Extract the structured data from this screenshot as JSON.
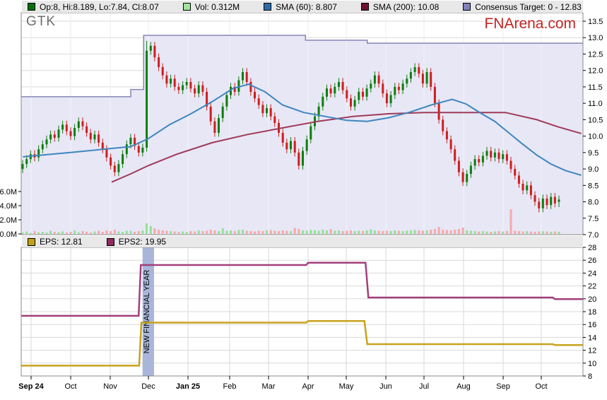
{
  "page": {
    "symbol": "GTK",
    "watermark": "FNArena.com"
  },
  "top_legend": {
    "items": [
      {
        "label": "Op:8, Hi:8.189, Lo:7.84, Cl:8.07",
        "color": "#0b6e0b"
      },
      {
        "label": "Vol: 0.312M",
        "color": "#9fe59f"
      },
      {
        "label": "SMA (60): 8.807",
        "color": "#2f6cab"
      },
      {
        "label": "SMA (200): 10.08",
        "color": "#701030"
      },
      {
        "label": "Consensus Target: 0 - 12.83",
        "color": "#8080bf"
      }
    ]
  },
  "bottom_legend": {
    "items": [
      {
        "label": "EPS: 12.81",
        "color": "#c0a316"
      },
      {
        "label": "EPS2: 19.95",
        "color": "#8f2a63"
      }
    ]
  },
  "colors": {
    "candle_up": "#0e7d0e",
    "candle_down": "#cc1f1f",
    "vol_up": "#96e096",
    "vol_down": "#f5a9a9",
    "sma60": "#3f86bd",
    "sma200": "#a03a57",
    "consensus_line": "#8585b5",
    "consensus_fill": "#e7e7f6",
    "eps": "#c7a31c",
    "eps2": "#a23f7b",
    "band": "#a9b6d9",
    "grid": "#d9d9d9",
    "border": "#8a8a8a"
  },
  "chart_data": [
    {
      "type": "candlestick",
      "x_categories": [
        {
          "label": "Sep 24",
          "t": 0.0176,
          "bold": true
        },
        {
          "label": "Oct",
          "t": 0.0881,
          "bold": false
        },
        {
          "label": "Nov",
          "t": 0.1585,
          "bold": false
        },
        {
          "label": "Dec",
          "t": 0.2264,
          "bold": false
        },
        {
          "label": "Jan 25",
          "t": 0.2969,
          "bold": true
        },
        {
          "label": "Feb",
          "t": 0.3711,
          "bold": false
        },
        {
          "label": "Mar",
          "t": 0.4403,
          "bold": false
        },
        {
          "label": "Apr",
          "t": 0.5107,
          "bold": false
        },
        {
          "label": "May",
          "t": 0.5786,
          "bold": false
        },
        {
          "label": "Jun",
          "t": 0.6491,
          "bold": false
        },
        {
          "label": "Jul",
          "t": 0.717,
          "bold": false
        },
        {
          "label": "Aug",
          "t": 0.7874,
          "bold": false
        },
        {
          "label": "Sep",
          "t": 0.8579,
          "bold": false
        },
        {
          "label": "Oct",
          "t": 0.9258,
          "bold": false
        }
      ],
      "price_axis": {
        "min": 7.0,
        "max": 13.5,
        "tick_step": 0.5,
        "ticks": [
          "13.5",
          "13.0",
          "12.5",
          "12.0",
          "11.5",
          "11.0",
          "10.5",
          "10.0",
          "9.5",
          "9.0",
          "8.5",
          "8.0",
          "7.5",
          "7.0"
        ]
      },
      "volume_axis": {
        "ticks": [
          {
            "value": 6,
            "label": "6.0M"
          },
          {
            "value": 4,
            "label": "4.0M"
          },
          {
            "value": 2,
            "label": "2.0M"
          },
          {
            "value": 0,
            "label": "0.0M"
          }
        ]
      },
      "last_candle": {
        "open": 8,
        "high": 8.189,
        "low": 7.84,
        "close": 8.07
      },
      "series": {
        "first_open": 9.0,
        "closes": [
          9.15,
          9.3,
          9.45,
          9.35,
          9.6,
          9.75,
          9.9,
          10.05,
          9.95,
          10.2,
          10.35,
          10.15,
          10.0,
          10.25,
          10.45,
          10.3,
          10.1,
          9.9,
          10.05,
          9.8,
          9.6,
          9.35,
          9.1,
          8.9,
          9.15,
          9.45,
          9.75,
          9.95,
          9.7,
          9.5,
          9.65,
          12.6,
          12.75,
          12.4,
          12.1,
          11.85,
          11.6,
          11.75,
          11.5,
          11.4,
          11.55,
          11.65,
          11.45,
          11.3,
          11.55,
          11.35,
          10.9,
          10.45,
          10.1,
          10.55,
          10.9,
          11.25,
          11.5,
          11.35,
          11.7,
          11.95,
          11.65,
          11.35,
          11.15,
          10.95,
          10.7,
          10.85,
          10.6,
          10.4,
          10.1,
          9.8,
          9.6,
          9.85,
          9.5,
          9.1,
          9.55,
          9.9,
          10.3,
          10.6,
          10.9,
          11.2,
          11.45,
          11.3,
          11.5,
          11.65,
          11.4,
          11.15,
          10.9,
          11.1,
          11.35,
          11.2,
          11.45,
          11.6,
          11.85,
          11.6,
          11.3,
          11.0,
          11.25,
          11.5,
          11.4,
          11.6,
          11.75,
          11.95,
          12.1,
          11.9,
          11.6,
          11.95,
          11.5,
          11.0,
          10.5,
          10.15,
          9.9,
          9.6,
          9.25,
          8.9,
          8.6,
          8.85,
          9.1,
          9.3,
          9.2,
          9.4,
          9.55,
          9.35,
          9.5,
          9.3,
          9.45,
          9.25,
          9.0,
          8.8,
          8.55,
          8.35,
          8.5,
          8.2,
          8.0,
          7.8,
          8.1,
          7.9,
          8.15,
          7.95,
          8.07
        ],
        "volumes_m": [
          0.2,
          0.35,
          0.15,
          0.4,
          0.25,
          0.3,
          0.2,
          0.45,
          0.3,
          0.25,
          0.35,
          0.2,
          0.3,
          0.5,
          0.25,
          0.4,
          0.3,
          0.2,
          0.35,
          0.45,
          0.3,
          0.5,
          0.4,
          0.6,
          0.35,
          0.3,
          0.45,
          0.45,
          0.3,
          0.4,
          0.5,
          1.5,
          1.1,
          0.8,
          0.6,
          0.5,
          0.45,
          0.4,
          0.35,
          0.3,
          0.35,
          0.3,
          0.4,
          0.35,
          0.5,
          0.4,
          0.45,
          0.6,
          0.5,
          0.4,
          0.8,
          0.45,
          0.5,
          0.4,
          0.55,
          0.6,
          0.45,
          0.4,
          0.35,
          0.45,
          0.4,
          0.5,
          0.55,
          0.45,
          0.4,
          0.5,
          0.45,
          0.4,
          0.85,
          0.7,
          0.5,
          0.45,
          0.55,
          0.5,
          0.45,
          0.6,
          0.5,
          0.7,
          0.45,
          0.5,
          0.4,
          0.45,
          0.5,
          0.4,
          0.45,
          0.4,
          0.5,
          0.65,
          0.5,
          0.45,
          0.4,
          0.45,
          0.4,
          0.5,
          0.45,
          0.4,
          0.45,
          0.5,
          0.55,
          0.5,
          0.45,
          0.5,
          0.6,
          0.7,
          1.0,
          0.6,
          0.55,
          0.5,
          0.6,
          0.7,
          0.9,
          0.5,
          0.45,
          0.4,
          0.35,
          0.4,
          0.35,
          0.3,
          0.35,
          0.4,
          0.35,
          0.4,
          3.5,
          0.45,
          0.4,
          0.35,
          0.4,
          0.35,
          0.3,
          0.35,
          0.4,
          0.35,
          0.3,
          0.35,
          0.312
        ],
        "sma60": {
          "name": "SMA (60)",
          "current": 8.807,
          "points": [
            [
              0.003,
              9.37
            ],
            [
              0.088,
              9.5
            ],
            [
              0.158,
              9.62
            ],
            [
              0.195,
              9.68
            ],
            [
              0.226,
              9.92
            ],
            [
              0.264,
              10.35
            ],
            [
              0.302,
              10.68
            ],
            [
              0.34,
              11.05
            ],
            [
              0.377,
              11.45
            ],
            [
              0.405,
              11.58
            ],
            [
              0.434,
              11.35
            ],
            [
              0.465,
              10.95
            ],
            [
              0.503,
              10.72
            ],
            [
              0.541,
              10.6
            ],
            [
              0.579,
              10.48
            ],
            [
              0.616,
              10.45
            ],
            [
              0.654,
              10.56
            ],
            [
              0.692,
              10.73
            ],
            [
              0.73,
              10.95
            ],
            [
              0.767,
              11.12
            ],
            [
              0.792,
              10.98
            ],
            [
              0.818,
              10.7
            ],
            [
              0.843,
              10.45
            ],
            [
              0.868,
              10.1
            ],
            [
              0.893,
              9.75
            ],
            [
              0.918,
              9.42
            ],
            [
              0.943,
              9.15
            ],
            [
              0.969,
              8.95
            ],
            [
              0.997,
              8.81
            ]
          ]
        },
        "sma200": {
          "name": "SMA (200)",
          "current": 10.08,
          "points": [
            [
              0.161,
              8.6
            ],
            [
              0.195,
              8.85
            ],
            [
              0.226,
              9.1
            ],
            [
              0.277,
              9.45
            ],
            [
              0.34,
              9.8
            ],
            [
              0.403,
              10.05
            ],
            [
              0.465,
              10.25
            ],
            [
              0.528,
              10.45
            ],
            [
              0.591,
              10.6
            ],
            [
              0.654,
              10.68
            ],
            [
              0.717,
              10.72
            ],
            [
              0.862,
              10.72
            ],
            [
              0.918,
              10.5
            ],
            [
              0.956,
              10.28
            ],
            [
              0.997,
              10.08
            ]
          ]
        },
        "consensus": {
          "name": "Consensus Target",
          "range": "0 - 12.83",
          "steps": [
            [
              0,
              11.2
            ],
            [
              0.195,
              11.2
            ],
            [
              0.195,
              11.42
            ],
            [
              0.218,
              11.42
            ],
            [
              0.218,
              13.07
            ],
            [
              0.506,
              13.07
            ],
            [
              0.506,
              12.92
            ],
            [
              0.616,
              12.92
            ],
            [
              0.616,
              12.83
            ],
            [
              1,
              12.83
            ]
          ]
        }
      }
    },
    {
      "type": "line",
      "eps_axis": {
        "min": 8,
        "max": 28,
        "tick_step": 2,
        "ticks": [
          "28",
          "26",
          "24",
          "22",
          "20",
          "18",
          "16",
          "14",
          "12",
          "10",
          "8"
        ]
      },
      "series": {
        "eps": {
          "name": "EPS",
          "current": 12.81,
          "steps": [
            [
              0,
              9.6
            ],
            [
              0.21,
              9.6
            ],
            [
              0.214,
              16.3
            ],
            [
              0.507,
              16.3
            ],
            [
              0.511,
              16.55
            ],
            [
              0.611,
              16.55
            ],
            [
              0.616,
              12.95
            ],
            [
              0.946,
              12.95
            ],
            [
              0.95,
              12.81
            ],
            [
              1,
              12.81
            ]
          ]
        },
        "eps2": {
          "name": "EPS2",
          "current": 19.95,
          "steps": [
            [
              0,
              17.35
            ],
            [
              0.209,
              17.35
            ],
            [
              0.213,
              25.25
            ],
            [
              0.507,
              25.25
            ],
            [
              0.511,
              25.6
            ],
            [
              0.613,
              25.6
            ],
            [
              0.618,
              20.2
            ],
            [
              0.946,
              20.2
            ],
            [
              0.95,
              19.95
            ],
            [
              1,
              19.95
            ]
          ]
        }
      },
      "annotation_band": {
        "label": "NEW FINANCIAL YEAR",
        "t0": 0.216,
        "t1": 0.2365
      }
    }
  ]
}
